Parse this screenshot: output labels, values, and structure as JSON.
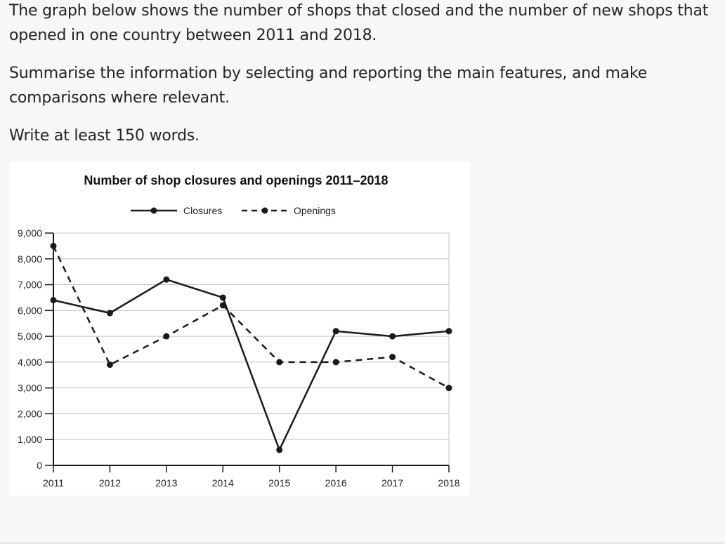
{
  "prompt": {
    "paragraph1": "The graph below shows the number of shops that closed and the number of new shops that opened in one country between 2011 and 2018.",
    "paragraph2": "Summarise the information by selecting and reporting the main features, and make comparisons where relevant.",
    "paragraph3": "Write at least 150 words."
  },
  "chart_data": {
    "type": "line",
    "title": "Number of shop closures and openings 2011–2018",
    "xlabel": "",
    "ylabel": "",
    "x": [
      "2011",
      "2012",
      "2013",
      "2014",
      "2015",
      "2016",
      "2017",
      "2018"
    ],
    "ylim": [
      0,
      9000
    ],
    "yticks": [
      0,
      1000,
      2000,
      3000,
      4000,
      5000,
      6000,
      7000,
      8000,
      9000
    ],
    "ytick_labels": [
      "0",
      "1,000",
      "2,000",
      "3,000",
      "4,000",
      "5,000",
      "6,000",
      "7,000",
      "8,000",
      "9,000"
    ],
    "grid": "horizontal",
    "legend_position": "top-center",
    "series": [
      {
        "name": "Closures",
        "style": "solid",
        "color": "#1a1a1a",
        "values": [
          6400,
          5900,
          7200,
          6500,
          600,
          5200,
          5000,
          5200
        ]
      },
      {
        "name": "Openings",
        "style": "dashed",
        "color": "#1a1a1a",
        "values": [
          8500,
          3900,
          5000,
          6200,
          4000,
          4000,
          4200,
          3000
        ]
      }
    ]
  }
}
